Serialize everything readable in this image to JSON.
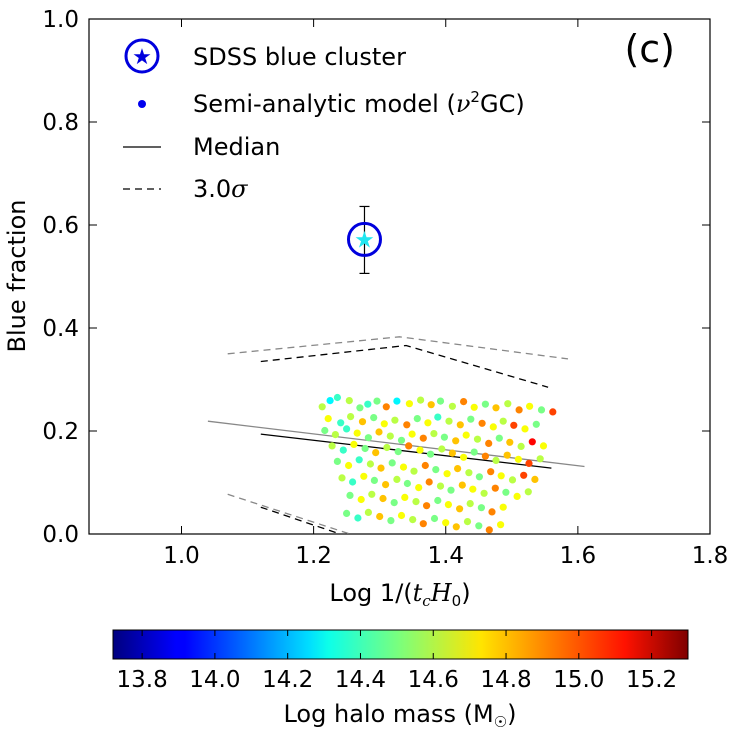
{
  "chart_data": {
    "type": "scatter",
    "panel_label": "(c)",
    "xlabel": "Log 1/(",
    "xlabel_math": "t_c H_0",
    "xlabel_parts": [
      "Log 1/(",
      "t",
      "c",
      "H",
      "0",
      ")"
    ],
    "ylabel": "Blue fraction",
    "xlim": [
      0.86,
      1.8
    ],
    "ylim": [
      0.0,
      1.0
    ],
    "x_ticks": [
      1.0,
      1.2,
      1.4,
      1.6,
      1.8
    ],
    "x_tick_labels": [
      "1.0",
      "1.2",
      "1.4",
      "1.6",
      "1.8"
    ],
    "y_ticks": [
      0.0,
      0.2,
      0.4,
      0.6,
      0.8,
      1.0
    ],
    "y_tick_labels": [
      "0.0",
      "0.2",
      "0.4",
      "0.6",
      "0.8",
      "1.0"
    ],
    "legend": {
      "placement": "top-left",
      "entries": [
        {
          "label": "SDSS blue cluster",
          "marker": "star-in-circle"
        },
        {
          "label_parts": [
            "Semi-analytic model (",
            "ν",
            "2",
            "GC)"
          ],
          "marker": "dot"
        },
        {
          "label": "Median",
          "marker": "solid-line"
        },
        {
          "label_parts": [
            "3.0",
            "σ"
          ],
          "marker": "dashed-line"
        }
      ]
    },
    "sdss_point": {
      "x": 1.277,
      "y": 0.572,
      "yerr_low": 0.066,
      "yerr_high": 0.064
    },
    "median_model": [
      {
        "x": 1.12,
        "y": 0.194
      },
      {
        "x": 1.56,
        "y": 0.128
      }
    ],
    "median_sdss": [
      {
        "x": 1.04,
        "y": 0.219
      },
      {
        "x": 1.61,
        "y": 0.131
      }
    ],
    "sigma_upper_model": [
      {
        "x": 1.12,
        "y": 0.335
      },
      {
        "x": 1.34,
        "y": 0.366
      },
      {
        "x": 1.555,
        "y": 0.285
      }
    ],
    "sigma_upper_sdss": [
      {
        "x": 1.07,
        "y": 0.35
      },
      {
        "x": 1.33,
        "y": 0.383
      },
      {
        "x": 1.585,
        "y": 0.34
      }
    ],
    "sigma_lower_model": [
      {
        "x": 1.12,
        "y": 0.052
      },
      {
        "x": 1.24,
        "y": 0.0
      }
    ],
    "sigma_lower_sdss": [
      {
        "x": 1.07,
        "y": 0.077
      },
      {
        "x": 1.255,
        "y": 0.0
      }
    ],
    "colorbar": {
      "label": "Log halo mass (M",
      "label_parts": [
        "Log halo mass (M",
        "☉",
        ")"
      ],
      "min": 13.72,
      "max": 15.3,
      "ticks": [
        13.8,
        14.0,
        14.2,
        14.4,
        14.6,
        14.8,
        15.0,
        15.2
      ],
      "tick_labels": [
        "13.8",
        "14.0",
        "14.2",
        "14.4",
        "14.6",
        "14.8",
        "15.0",
        "15.2"
      ]
    },
    "points": [
      {
        "x": 1.213,
        "y": 0.247,
        "m": 14.6
      },
      {
        "x": 1.225,
        "y": 0.259,
        "m": 14.3
      },
      {
        "x": 1.236,
        "y": 0.265,
        "m": 14.4
      },
      {
        "x": 1.254,
        "y": 0.259,
        "m": 14.6
      },
      {
        "x": 1.27,
        "y": 0.245,
        "m": 14.5
      },
      {
        "x": 1.282,
        "y": 0.252,
        "m": 14.4
      },
      {
        "x": 1.296,
        "y": 0.258,
        "m": 14.5
      },
      {
        "x": 1.31,
        "y": 0.247,
        "m": 14.9
      },
      {
        "x": 1.326,
        "y": 0.258,
        "m": 14.3
      },
      {
        "x": 1.345,
        "y": 0.253,
        "m": 14.7
      },
      {
        "x": 1.362,
        "y": 0.26,
        "m": 14.6
      },
      {
        "x": 1.378,
        "y": 0.251,
        "m": 14.8
      },
      {
        "x": 1.392,
        "y": 0.258,
        "m": 14.5
      },
      {
        "x": 1.41,
        "y": 0.248,
        "m": 14.6
      },
      {
        "x": 1.427,
        "y": 0.257,
        "m": 14.9
      },
      {
        "x": 1.443,
        "y": 0.246,
        "m": 14.7
      },
      {
        "x": 1.46,
        "y": 0.252,
        "m": 14.5
      },
      {
        "x": 1.476,
        "y": 0.245,
        "m": 14.8
      },
      {
        "x": 1.494,
        "y": 0.253,
        "m": 14.6
      },
      {
        "x": 1.511,
        "y": 0.241,
        "m": 14.9
      },
      {
        "x": 1.527,
        "y": 0.248,
        "m": 14.7
      },
      {
        "x": 1.545,
        "y": 0.241,
        "m": 14.5
      },
      {
        "x": 1.562,
        "y": 0.237,
        "m": 15.0
      },
      {
        "x": 1.222,
        "y": 0.224,
        "m": 14.7
      },
      {
        "x": 1.241,
        "y": 0.216,
        "m": 14.4
      },
      {
        "x": 1.256,
        "y": 0.228,
        "m": 14.6
      },
      {
        "x": 1.274,
        "y": 0.218,
        "m": 14.8
      },
      {
        "x": 1.291,
        "y": 0.226,
        "m": 14.5
      },
      {
        "x": 1.307,
        "y": 0.214,
        "m": 14.7
      },
      {
        "x": 1.323,
        "y": 0.221,
        "m": 14.6
      },
      {
        "x": 1.341,
        "y": 0.212,
        "m": 14.9
      },
      {
        "x": 1.357,
        "y": 0.224,
        "m": 14.5
      },
      {
        "x": 1.373,
        "y": 0.216,
        "m": 14.7
      },
      {
        "x": 1.388,
        "y": 0.227,
        "m": 14.4
      },
      {
        "x": 1.405,
        "y": 0.219,
        "m": 14.6
      },
      {
        "x": 1.422,
        "y": 0.212,
        "m": 14.8
      },
      {
        "x": 1.438,
        "y": 0.223,
        "m": 14.5
      },
      {
        "x": 1.455,
        "y": 0.215,
        "m": 14.9
      },
      {
        "x": 1.472,
        "y": 0.208,
        "m": 14.7
      },
      {
        "x": 1.487,
        "y": 0.219,
        "m": 14.6
      },
      {
        "x": 1.503,
        "y": 0.211,
        "m": 15.0
      },
      {
        "x": 1.52,
        "y": 0.204,
        "m": 14.7
      },
      {
        "x": 1.537,
        "y": 0.213,
        "m": 14.5
      },
      {
        "x": 1.217,
        "y": 0.201,
        "m": 14.5
      },
      {
        "x": 1.233,
        "y": 0.193,
        "m": 14.6
      },
      {
        "x": 1.25,
        "y": 0.204,
        "m": 14.4
      },
      {
        "x": 1.266,
        "y": 0.196,
        "m": 14.7
      },
      {
        "x": 1.283,
        "y": 0.187,
        "m": 14.5
      },
      {
        "x": 1.299,
        "y": 0.198,
        "m": 14.8
      },
      {
        "x": 1.316,
        "y": 0.19,
        "m": 14.6
      },
      {
        "x": 1.333,
        "y": 0.182,
        "m": 14.5
      },
      {
        "x": 1.349,
        "y": 0.194,
        "m": 14.7
      },
      {
        "x": 1.366,
        "y": 0.186,
        "m": 14.9
      },
      {
        "x": 1.382,
        "y": 0.195,
        "m": 14.6
      },
      {
        "x": 1.398,
        "y": 0.188,
        "m": 14.5
      },
      {
        "x": 1.415,
        "y": 0.181,
        "m": 14.8
      },
      {
        "x": 1.431,
        "y": 0.192,
        "m": 14.7
      },
      {
        "x": 1.448,
        "y": 0.184,
        "m": 14.6
      },
      {
        "x": 1.465,
        "y": 0.176,
        "m": 14.9
      },
      {
        "x": 1.481,
        "y": 0.186,
        "m": 14.5
      },
      {
        "x": 1.497,
        "y": 0.178,
        "m": 14.8
      },
      {
        "x": 1.514,
        "y": 0.17,
        "m": 14.6
      },
      {
        "x": 1.531,
        "y": 0.179,
        "m": 15.1
      },
      {
        "x": 1.548,
        "y": 0.171,
        "m": 14.7
      },
      {
        "x": 1.228,
        "y": 0.171,
        "m": 14.6
      },
      {
        "x": 1.245,
        "y": 0.163,
        "m": 14.4
      },
      {
        "x": 1.261,
        "y": 0.174,
        "m": 14.7
      },
      {
        "x": 1.278,
        "y": 0.166,
        "m": 14.5
      },
      {
        "x": 1.294,
        "y": 0.158,
        "m": 14.8
      },
      {
        "x": 1.311,
        "y": 0.168,
        "m": 14.6
      },
      {
        "x": 1.328,
        "y": 0.16,
        "m": 14.5
      },
      {
        "x": 1.344,
        "y": 0.171,
        "m": 14.9
      },
      {
        "x": 1.361,
        "y": 0.163,
        "m": 14.7
      },
      {
        "x": 1.377,
        "y": 0.155,
        "m": 14.5
      },
      {
        "x": 1.394,
        "y": 0.165,
        "m": 14.6
      },
      {
        "x": 1.41,
        "y": 0.157,
        "m": 14.8
      },
      {
        "x": 1.427,
        "y": 0.149,
        "m": 14.7
      },
      {
        "x": 1.443,
        "y": 0.159,
        "m": 14.5
      },
      {
        "x": 1.46,
        "y": 0.151,
        "m": 14.9
      },
      {
        "x": 1.476,
        "y": 0.143,
        "m": 14.6
      },
      {
        "x": 1.493,
        "y": 0.153,
        "m": 14.8
      },
      {
        "x": 1.51,
        "y": 0.145,
        "m": 14.7
      },
      {
        "x": 1.526,
        "y": 0.137,
        "m": 15.0
      },
      {
        "x": 1.543,
        "y": 0.146,
        "m": 14.6
      },
      {
        "x": 1.236,
        "y": 0.141,
        "m": 14.5
      },
      {
        "x": 1.253,
        "y": 0.133,
        "m": 14.7
      },
      {
        "x": 1.269,
        "y": 0.144,
        "m": 14.4
      },
      {
        "x": 1.286,
        "y": 0.136,
        "m": 14.6
      },
      {
        "x": 1.302,
        "y": 0.128,
        "m": 14.8
      },
      {
        "x": 1.319,
        "y": 0.138,
        "m": 14.5
      },
      {
        "x": 1.336,
        "y": 0.13,
        "m": 14.7
      },
      {
        "x": 1.352,
        "y": 0.122,
        "m": 14.6
      },
      {
        "x": 1.369,
        "y": 0.133,
        "m": 14.9
      },
      {
        "x": 1.385,
        "y": 0.125,
        "m": 14.5
      },
      {
        "x": 1.402,
        "y": 0.117,
        "m": 14.7
      },
      {
        "x": 1.418,
        "y": 0.127,
        "m": 14.8
      },
      {
        "x": 1.435,
        "y": 0.119,
        "m": 14.6
      },
      {
        "x": 1.451,
        "y": 0.111,
        "m": 14.5
      },
      {
        "x": 1.468,
        "y": 0.121,
        "m": 14.9
      },
      {
        "x": 1.484,
        "y": 0.113,
        "m": 14.7
      },
      {
        "x": 1.501,
        "y": 0.105,
        "m": 14.6
      },
      {
        "x": 1.518,
        "y": 0.114,
        "m": 15.0
      },
      {
        "x": 1.535,
        "y": 0.106,
        "m": 14.8
      },
      {
        "x": 1.243,
        "y": 0.109,
        "m": 14.6
      },
      {
        "x": 1.259,
        "y": 0.101,
        "m": 14.4
      },
      {
        "x": 1.276,
        "y": 0.112,
        "m": 14.7
      },
      {
        "x": 1.292,
        "y": 0.104,
        "m": 14.5
      },
      {
        "x": 1.309,
        "y": 0.096,
        "m": 14.8
      },
      {
        "x": 1.326,
        "y": 0.106,
        "m": 14.6
      },
      {
        "x": 1.342,
        "y": 0.098,
        "m": 14.5
      },
      {
        "x": 1.359,
        "y": 0.09,
        "m": 14.7
      },
      {
        "x": 1.375,
        "y": 0.101,
        "m": 14.9
      },
      {
        "x": 1.392,
        "y": 0.093,
        "m": 14.6
      },
      {
        "x": 1.408,
        "y": 0.085,
        "m": 14.5
      },
      {
        "x": 1.425,
        "y": 0.095,
        "m": 14.8
      },
      {
        "x": 1.441,
        "y": 0.087,
        "m": 14.7
      },
      {
        "x": 1.458,
        "y": 0.079,
        "m": 14.6
      },
      {
        "x": 1.475,
        "y": 0.089,
        "m": 14.9
      },
      {
        "x": 1.491,
        "y": 0.081,
        "m": 14.5
      },
      {
        "x": 1.508,
        "y": 0.073,
        "m": 14.7
      },
      {
        "x": 1.525,
        "y": 0.082,
        "m": 14.6
      },
      {
        "x": 1.255,
        "y": 0.075,
        "m": 14.5
      },
      {
        "x": 1.272,
        "y": 0.067,
        "m": 14.7
      },
      {
        "x": 1.288,
        "y": 0.077,
        "m": 14.6
      },
      {
        "x": 1.305,
        "y": 0.069,
        "m": 14.8
      },
      {
        "x": 1.322,
        "y": 0.061,
        "m": 14.5
      },
      {
        "x": 1.338,
        "y": 0.071,
        "m": 14.7
      },
      {
        "x": 1.355,
        "y": 0.063,
        "m": 14.6
      },
      {
        "x": 1.371,
        "y": 0.055,
        "m": 14.9
      },
      {
        "x": 1.388,
        "y": 0.065,
        "m": 14.5
      },
      {
        "x": 1.404,
        "y": 0.057,
        "m": 14.7
      },
      {
        "x": 1.421,
        "y": 0.049,
        "m": 14.8
      },
      {
        "x": 1.437,
        "y": 0.059,
        "m": 14.6
      },
      {
        "x": 1.454,
        "y": 0.051,
        "m": 14.5
      },
      {
        "x": 1.47,
        "y": 0.043,
        "m": 14.9
      },
      {
        "x": 1.487,
        "y": 0.052,
        "m": 14.7
      },
      {
        "x": 1.25,
        "y": 0.04,
        "m": 14.5
      },
      {
        "x": 1.267,
        "y": 0.031,
        "m": 14.4
      },
      {
        "x": 1.283,
        "y": 0.042,
        "m": 14.6
      },
      {
        "x": 1.3,
        "y": 0.034,
        "m": 14.8
      },
      {
        "x": 1.317,
        "y": 0.026,
        "m": 14.5
      },
      {
        "x": 1.333,
        "y": 0.036,
        "m": 14.7
      },
      {
        "x": 1.35,
        "y": 0.028,
        "m": 14.6
      },
      {
        "x": 1.366,
        "y": 0.02,
        "m": 14.9
      },
      {
        "x": 1.383,
        "y": 0.03,
        "m": 14.5
      },
      {
        "x": 1.4,
        "y": 0.022,
        "m": 14.7
      },
      {
        "x": 1.416,
        "y": 0.014,
        "m": 14.8
      },
      {
        "x": 1.433,
        "y": 0.024,
        "m": 14.6
      },
      {
        "x": 1.45,
        "y": 0.016,
        "m": 14.5
      },
      {
        "x": 1.466,
        "y": 0.008,
        "m": 14.9
      },
      {
        "x": 1.483,
        "y": 0.018,
        "m": 14.7
      }
    ]
  }
}
